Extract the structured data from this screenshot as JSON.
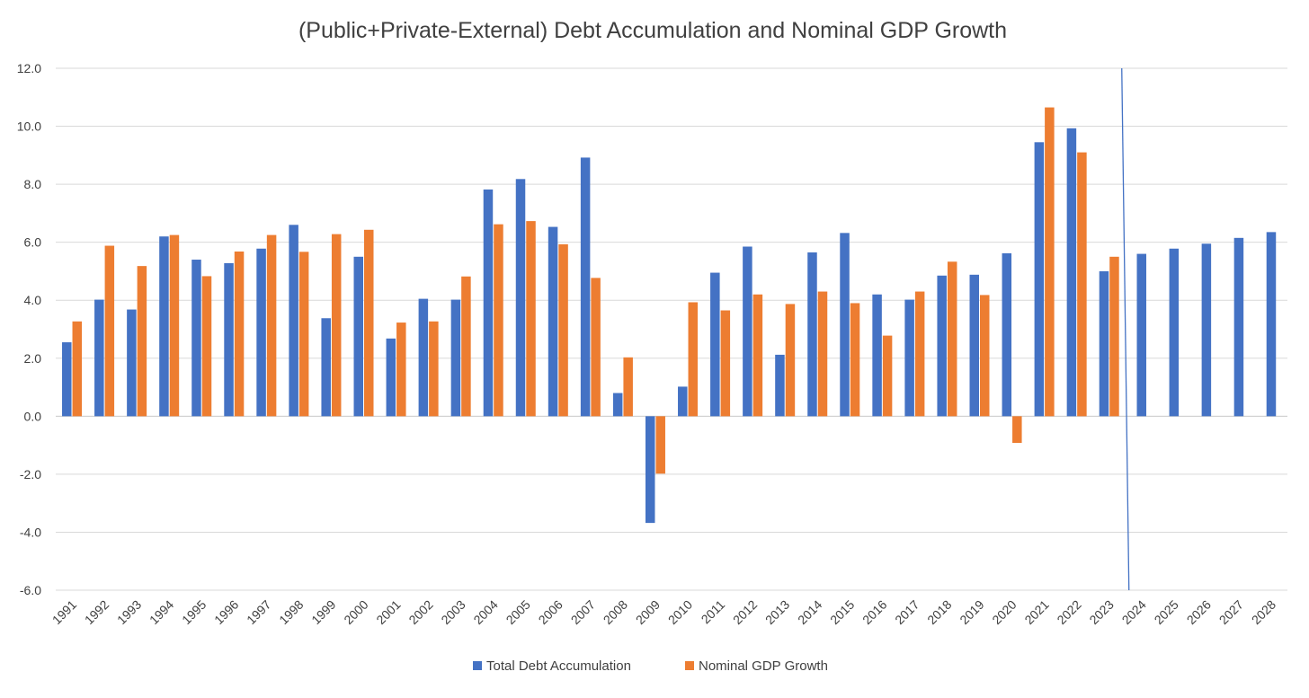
{
  "chart_data": {
    "type": "bar",
    "title": "(Public+Private-External) Debt Accumulation and Nominal GDP Growth",
    "xlabel": "",
    "ylabel": "",
    "ylim": [
      -6,
      12
    ],
    "y_ticks": [
      "12.0",
      "10.0",
      "8.0",
      "6.0",
      "4.0",
      "2.0",
      "0.0",
      "-2.0",
      "-4.0",
      "-6.0"
    ],
    "categories": [
      "1991",
      "1992",
      "1993",
      "1994",
      "1995",
      "1996",
      "1997",
      "1998",
      "1999",
      "2000",
      "2001",
      "2002",
      "2003",
      "2004",
      "2005",
      "2006",
      "2007",
      "2008",
      "2009",
      "2010",
      "2011",
      "2012",
      "2013",
      "2014",
      "2015",
      "2016",
      "2017",
      "2018",
      "2019",
      "2020",
      "2021",
      "2022",
      "2023",
      "2024",
      "2025",
      "2026",
      "2027",
      "2028"
    ],
    "series": [
      {
        "name": "Total Debt Accumulation",
        "color": "#4472C4",
        "values": [
          2.55,
          4.02,
          3.68,
          6.2,
          5.4,
          5.28,
          5.78,
          6.6,
          3.38,
          5.5,
          2.68,
          4.05,
          4.02,
          7.82,
          8.18,
          6.53,
          8.92,
          0.8,
          -3.68,
          1.02,
          4.95,
          5.85,
          2.12,
          5.65,
          6.32,
          4.2,
          4.02,
          4.85,
          4.88,
          5.62,
          9.45,
          9.93,
          5.0,
          5.6,
          5.78,
          5.95,
          6.15,
          6.35
        ]
      },
      {
        "name": "Nominal GDP Growth",
        "color": "#ED7D31",
        "values": [
          3.27,
          5.88,
          5.18,
          6.25,
          4.83,
          5.68,
          6.25,
          5.67,
          6.28,
          6.43,
          3.23,
          3.27,
          4.82,
          6.62,
          6.73,
          5.93,
          4.77,
          2.03,
          -1.98,
          3.93,
          3.65,
          4.2,
          3.87,
          4.3,
          3.9,
          2.78,
          4.3,
          5.33,
          4.18,
          -0.92,
          10.65,
          9.1,
          5.5,
          null,
          null,
          null,
          null,
          null
        ]
      }
    ],
    "grid": true,
    "legend_position": "bottom",
    "forecast_divider_after": "2023"
  }
}
